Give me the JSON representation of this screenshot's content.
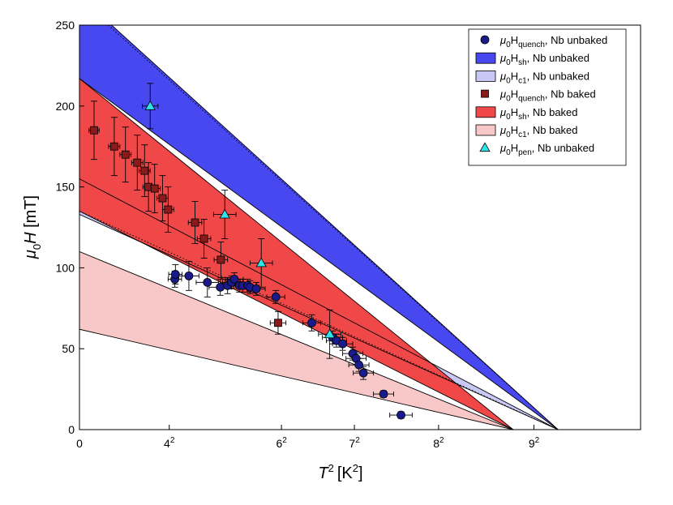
{
  "chart_data": {
    "type": "scatter",
    "x_range": [
      0,
      100
    ],
    "y_range": [
      0,
      250
    ],
    "x_axis": {
      "title_base": "T",
      "title_sup": "2",
      "title_unit": "[K",
      "title_unit_sup": "2",
      "title_unit_close": "]",
      "ticks": [
        {
          "value": 0,
          "base": "0",
          "sup": ""
        },
        {
          "value": 16,
          "base": "4",
          "sup": "2"
        },
        {
          "value": 36,
          "base": "6",
          "sup": "2"
        },
        {
          "value": 49,
          "base": "7",
          "sup": "2"
        },
        {
          "value": 64,
          "base": "8",
          "sup": "2"
        },
        {
          "value": 81,
          "base": "9",
          "sup": "2"
        }
      ]
    },
    "y_axis": {
      "title_mu": "μ",
      "title_sub": "0",
      "title_var": "H",
      "title_unit": " [mT]",
      "ticks": [
        0,
        50,
        100,
        150,
        200,
        250
      ]
    },
    "bands": [
      {
        "name": "μ0Hsh, Nb unbaked",
        "color": "#4848f0",
        "y0_top": 268,
        "y0_bottom": 217,
        "tc2": 85.3
      },
      {
        "name": "μ0Hc1, Nb unbaked",
        "color": "#c8c8f4",
        "y0_top": 155,
        "y0_bottom": 133,
        "tc2": 85.3
      },
      {
        "name": "μ0Hsh, Nb baked",
        "color": "#f04848",
        "y0_top": 217,
        "y0_bottom": 135,
        "tc2": 77.3
      },
      {
        "name": "μ0Hc1, Nb baked",
        "color": "#f8c8c8",
        "y0_top": 110,
        "y0_bottom": 62,
        "tc2": 77.3
      }
    ],
    "fit_lines": [
      {
        "y0": 268,
        "tc2": 85.3
      },
      {
        "y0": 217,
        "tc2": 85.3
      },
      {
        "y0": 155,
        "tc2": 85.3
      },
      {
        "y0": 133,
        "tc2": 85.3
      },
      {
        "y0": 217,
        "tc2": 77.3
      },
      {
        "y0": 135,
        "tc2": 77.3
      },
      {
        "y0": 110,
        "tc2": 77.3
      },
      {
        "y0": 62,
        "tc2": 77.3
      }
    ],
    "dotted_lines": [
      {
        "y0": 266,
        "tc2": 85.3
      },
      {
        "y0": 135,
        "tc2": 85.3
      }
    ],
    "series": [
      {
        "name": "Nb unbaked quench",
        "marker": "circle",
        "color": "#1a1a8c",
        "points": [
          {
            "x": 17.0,
            "y": 93,
            "xerr": 1.2,
            "yerr": 5
          },
          {
            "x": 17.1,
            "y": 96,
            "xerr": 1.2,
            "yerr": 6
          },
          {
            "x": 19.5,
            "y": 95,
            "xerr": 1.8,
            "yerr": 9
          },
          {
            "x": 22.8,
            "y": 91,
            "xerr": 2.0,
            "yerr": 9
          },
          {
            "x": 25.1,
            "y": 88,
            "xerr": 2.0,
            "yerr": 5
          },
          {
            "x": 26.4,
            "y": 89,
            "xerr": 1.6,
            "yerr": 5
          },
          {
            "x": 27.1,
            "y": 91,
            "xerr": 1.6,
            "yerr": 4
          },
          {
            "x": 27.6,
            "y": 93,
            "xerr": 1.6,
            "yerr": 4
          },
          {
            "x": 28.5,
            "y": 89,
            "xerr": 1.6,
            "yerr": 4
          },
          {
            "x": 29.1,
            "y": 89,
            "xerr": 1.6,
            "yerr": 4
          },
          {
            "x": 30.0,
            "y": 89,
            "xerr": 1.6,
            "yerr": 4
          },
          {
            "x": 30.4,
            "y": 88,
            "xerr": 1.6,
            "yerr": 4
          },
          {
            "x": 31.5,
            "y": 87,
            "xerr": 1.6,
            "yerr": 4
          },
          {
            "x": 35.0,
            "y": 82,
            "xerr": 1.6,
            "yerr": 4
          },
          {
            "x": 41.4,
            "y": 66,
            "xerr": 1.6,
            "yerr": 5
          },
          {
            "x": 45.1,
            "y": 57,
            "xerr": 1.8,
            "yerr": 4
          },
          {
            "x": 45.8,
            "y": 55,
            "xerr": 1.8,
            "yerr": 4
          },
          {
            "x": 46.9,
            "y": 53,
            "xerr": 1.8,
            "yerr": 4
          },
          {
            "x": 48.7,
            "y": 47,
            "xerr": 1.8,
            "yerr": 4
          },
          {
            "x": 49.3,
            "y": 44,
            "xerr": 1.8,
            "yerr": 4
          },
          {
            "x": 49.8,
            "y": 40,
            "xerr": 1.8,
            "yerr": 4
          },
          {
            "x": 50.6,
            "y": 35,
            "xerr": 1.8,
            "yerr": 4
          },
          {
            "x": 54.2,
            "y": 22,
            "xerr": 1.8,
            "yerr": 2
          },
          {
            "x": 57.3,
            "y": 9,
            "xerr": 2.0,
            "yerr": 2
          }
        ]
      },
      {
        "name": "Nb baked quench",
        "marker": "square",
        "color": "#8b1a1a",
        "points": [
          {
            "x": 2.6,
            "y": 185,
            "xerr": 0.9,
            "yerr": 18
          },
          {
            "x": 6.2,
            "y": 175,
            "xerr": 1.0,
            "yerr": 18
          },
          {
            "x": 8.2,
            "y": 170,
            "xerr": 1.0,
            "yerr": 17
          },
          {
            "x": 10.3,
            "y": 165,
            "xerr": 1.0,
            "yerr": 17
          },
          {
            "x": 11.6,
            "y": 160,
            "xerr": 1.0,
            "yerr": 16
          },
          {
            "x": 12.3,
            "y": 150,
            "xerr": 1.0,
            "yerr": 15
          },
          {
            "x": 13.4,
            "y": 149,
            "xerr": 1.0,
            "yerr": 15
          },
          {
            "x": 14.8,
            "y": 143,
            "xerr": 1.0,
            "yerr": 14
          },
          {
            "x": 15.8,
            "y": 136,
            "xerr": 1.0,
            "yerr": 14
          },
          {
            "x": 20.6,
            "y": 128,
            "xerr": 1.2,
            "yerr": 13
          },
          {
            "x": 22.2,
            "y": 118,
            "xerr": 1.2,
            "yerr": 12
          },
          {
            "x": 25.2,
            "y": 105,
            "xerr": 1.2,
            "yerr": 11
          },
          {
            "x": 35.4,
            "y": 66,
            "xerr": 1.4,
            "yerr": 7
          }
        ]
      },
      {
        "name": "Nb unbaked pen",
        "marker": "triangle",
        "color": "#2ee5e5",
        "points": [
          {
            "x": 12.6,
            "y": 200,
            "xerr": 1.4,
            "yerr": 14
          },
          {
            "x": 25.9,
            "y": 133,
            "xerr": 2.0,
            "yerr": 15
          },
          {
            "x": 32.4,
            "y": 103,
            "xerr": 2.0,
            "yerr": 15
          },
          {
            "x": 44.6,
            "y": 59,
            "xerr": 2.0,
            "yerr": 15
          }
        ]
      }
    ],
    "legend": {
      "position": "top-right",
      "entries": [
        {
          "kind": "circle",
          "color": "#1a1a8c",
          "mu": "μ",
          "sub0": "0",
          "H": "H",
          "sub": "quench",
          "rest": ", Nb unbaked"
        },
        {
          "kind": "patch",
          "color": "#4848f0",
          "mu": "μ",
          "sub0": "0",
          "H": "H",
          "sub": "sh",
          "rest": ", Nb unbaked"
        },
        {
          "kind": "patch",
          "color": "#c8c8f4",
          "mu": "μ",
          "sub0": "0",
          "H": "H",
          "sub": "c1",
          "rest": ", Nb unbaked"
        },
        {
          "kind": "square",
          "color": "#8b1a1a",
          "mu": "μ",
          "sub0": "0",
          "H": "H",
          "sub": "quench",
          "rest": ", Nb baked"
        },
        {
          "kind": "patch",
          "color": "#f04848",
          "mu": "μ",
          "sub0": "0",
          "H": "H",
          "sub": "sh",
          "rest": ", Nb baked"
        },
        {
          "kind": "patch",
          "color": "#f8c8c8",
          "mu": "μ",
          "sub0": "0",
          "H": "H",
          "sub": "c1",
          "rest": ", Nb baked"
        },
        {
          "kind": "triangle",
          "color": "#2ee5e5",
          "mu": "μ",
          "sub0": "0",
          "H": "H",
          "sub": "pen",
          "rest": ", Nb unbaked"
        }
      ]
    }
  }
}
